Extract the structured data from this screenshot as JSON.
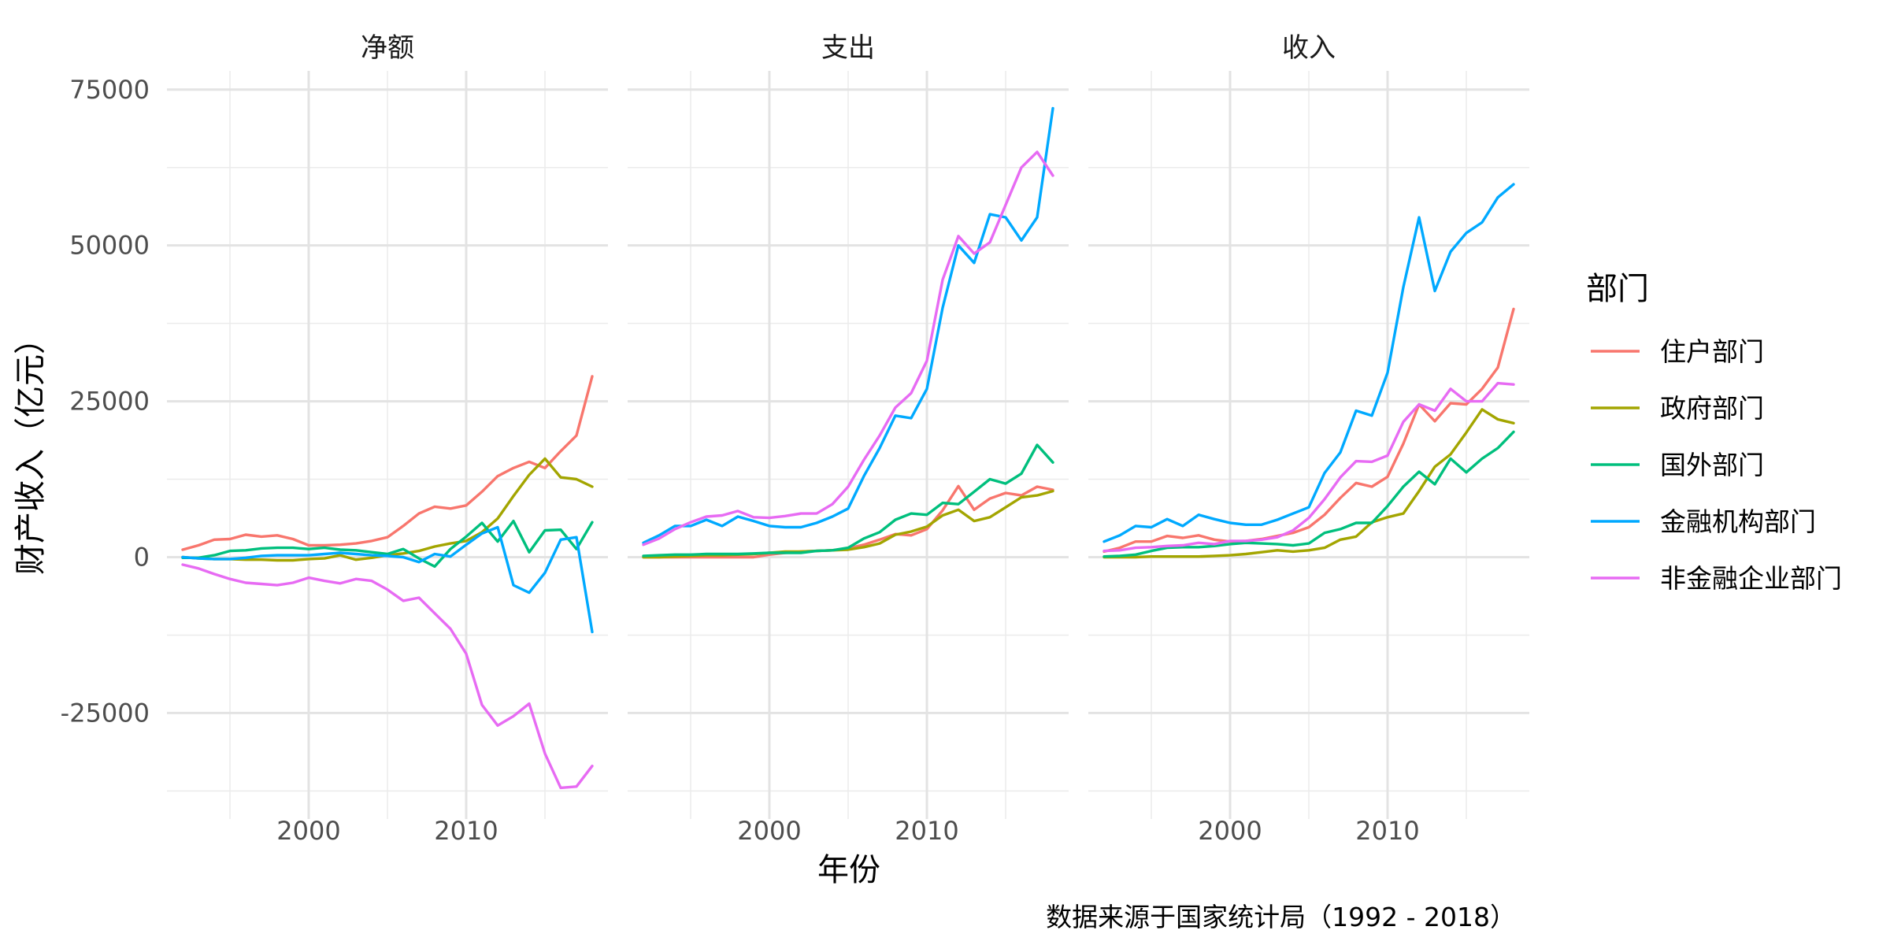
{
  "chart_data": {
    "type": "line",
    "facets": [
      "净额",
      "支出",
      "收入"
    ],
    "xlabel": "年份",
    "ylabel": "财产收入（亿元）",
    "caption": "数据来源于国家统计局（1992 - 2018）",
    "x_ticks": [
      2000,
      2010
    ],
    "y_ticks": [
      -25000,
      0,
      25000,
      50000,
      75000
    ],
    "y_tick_labels": [
      "-25000",
      "0",
      "25000",
      "50000",
      "75000"
    ],
    "xlim": [
      1991,
      2019
    ],
    "ylim": [
      -42000,
      78000
    ],
    "grid": true,
    "legend": {
      "title": "部门",
      "position": "right"
    },
    "x": [
      1992,
      1993,
      1994,
      1995,
      1996,
      1997,
      1998,
      1999,
      2000,
      2001,
      2002,
      2003,
      2004,
      2005,
      2006,
      2007,
      2008,
      2009,
      2010,
      2011,
      2012,
      2013,
      2014,
      2015,
      2016,
      2017,
      2018
    ],
    "series": [
      {
        "name": "住户部门",
        "color": "#F8766D",
        "values": {
          "净额": [
            1200,
            1900,
            2800,
            2900,
            3600,
            3300,
            3500,
            2900,
            1900,
            1900,
            2000,
            2200,
            2600,
            3200,
            5000,
            7000,
            8100,
            7800,
            8300,
            10500,
            13000,
            14300,
            15300,
            14300,
            17000,
            19500,
            29000
          ],
          "支出": [
            0,
            0,
            0,
            0,
            0,
            0,
            0,
            0,
            400,
            700,
            900,
            1000,
            1100,
            1400,
            2000,
            2800,
            3700,
            3500,
            4500,
            7500,
            11400,
            7600,
            9400,
            10300,
            9900,
            11300,
            10800
          ],
          "收入": [
            900,
            1500,
            2500,
            2500,
            3400,
            3100,
            3500,
            2800,
            2500,
            2600,
            2900,
            3400,
            3900,
            4800,
            6800,
            9500,
            11900,
            11300,
            12900,
            18200,
            24500,
            21800,
            24700,
            24500,
            27000,
            30400,
            39800
          ]
        }
      },
      {
        "name": "政府部门",
        "color": "#A3A500",
        "values": {
          "净额": [
            0,
            -200,
            -300,
            -300,
            -400,
            -400,
            -500,
            -500,
            -300,
            -200,
            300,
            -400,
            -100,
            300,
            600,
            1000,
            1700,
            2200,
            2600,
            4000,
            6200,
            9800,
            13200,
            15800,
            12800,
            12500,
            11300
          ],
          "支出": [
            0,
            0,
            100,
            200,
            300,
            300,
            400,
            500,
            700,
            900,
            900,
            1000,
            1100,
            1200,
            1600,
            2200,
            3600,
            4100,
            4900,
            6700,
            7600,
            5800,
            6400,
            8000,
            9600,
            9900,
            10600
          ],
          "收入": [
            0,
            0,
            0,
            100,
            100,
            100,
            100,
            200,
            300,
            500,
            800,
            1100,
            900,
            1100,
            1500,
            2800,
            3300,
            5600,
            6400,
            7000,
            10600,
            14500,
            16500,
            20000,
            23700,
            22100,
            21500
          ]
        }
      },
      {
        "name": "国外部门",
        "color": "#00BF7D",
        "values": {
          "净额": [
            -100,
            -100,
            300,
            1000,
            1100,
            1400,
            1500,
            1500,
            1300,
            1500,
            1200,
            1100,
            800,
            500,
            1300,
            -200,
            -1500,
            1300,
            3300,
            5500,
            2500,
            5800,
            800,
            4300,
            4400,
            1300,
            5600
          ],
          "支出": [
            200,
            300,
            400,
            400,
            500,
            500,
            500,
            600,
            700,
            700,
            700,
            1000,
            1100,
            1500,
            3000,
            4000,
            6000,
            7000,
            6800,
            8700,
            8500,
            10500,
            12500,
            11800,
            13400,
            18000,
            15200
          ],
          "收入": [
            100,
            200,
            400,
            1000,
            1500,
            1600,
            1600,
            1800,
            2100,
            2300,
            2200,
            2100,
            1900,
            2200,
            3900,
            4500,
            5500,
            5500,
            8200,
            11300,
            13700,
            11700,
            15800,
            13600,
            15800,
            17500,
            20100
          ]
        }
      },
      {
        "name": "金融机构部门",
        "color": "#00A9FF",
        "values": {
          "净额": [
            0,
            -200,
            -300,
            -300,
            -100,
            200,
            300,
            300,
            300,
            500,
            700,
            500,
            300,
            200,
            0,
            -800,
            500,
            100,
            2000,
            3800,
            4800,
            -4500,
            -5700,
            -2500,
            2800,
            3200,
            -12000
          ],
          "支出": [
            2300,
            3500,
            5000,
            5000,
            6000,
            5000,
            6500,
            5800,
            5000,
            4800,
            4800,
            5500,
            6500,
            7800,
            13000,
            17500,
            22700,
            22300,
            27000,
            40000,
            50000,
            47200,
            55000,
            54500,
            50800,
            54500,
            72000
          ],
          "收入": [
            2500,
            3500,
            5000,
            4800,
            6100,
            5000,
            6800,
            6100,
            5500,
            5200,
            5200,
            6000,
            7000,
            8000,
            13500,
            16800,
            23500,
            22700,
            29600,
            43300,
            54500,
            42700,
            49000,
            52000,
            53700,
            57700,
            59800
          ]
        }
      },
      {
        "name": "非金融企业部门",
        "color": "#E76BF3",
        "values": {
          "净额": [
            -1200,
            -1800,
            -2700,
            -3500,
            -4100,
            -4300,
            -4500,
            -4100,
            -3300,
            -3800,
            -4200,
            -3500,
            -3800,
            -5200,
            -7000,
            -6500,
            -9000,
            -11500,
            -15500,
            -23700,
            -27000,
            -25500,
            -23500,
            -31500,
            -37000,
            -36800,
            -33500
          ],
          "支出": [
            2000,
            3000,
            4500,
            5600,
            6500,
            6700,
            7400,
            6400,
            6300,
            6600,
            7000,
            7000,
            8500,
            11300,
            15600,
            19500,
            24000,
            26300,
            31500,
            44500,
            51500,
            48700,
            50500,
            56500,
            62500,
            65000,
            61200
          ],
          "收入": [
            1000,
            1100,
            1500,
            1600,
            1800,
            1900,
            2300,
            2100,
            2600,
            2600,
            2800,
            3200,
            4300,
            6300,
            9300,
            12800,
            15400,
            15300,
            16300,
            21700,
            24500,
            23500,
            27000,
            25000,
            25000,
            27900,
            27700
          ]
        }
      }
    ]
  }
}
